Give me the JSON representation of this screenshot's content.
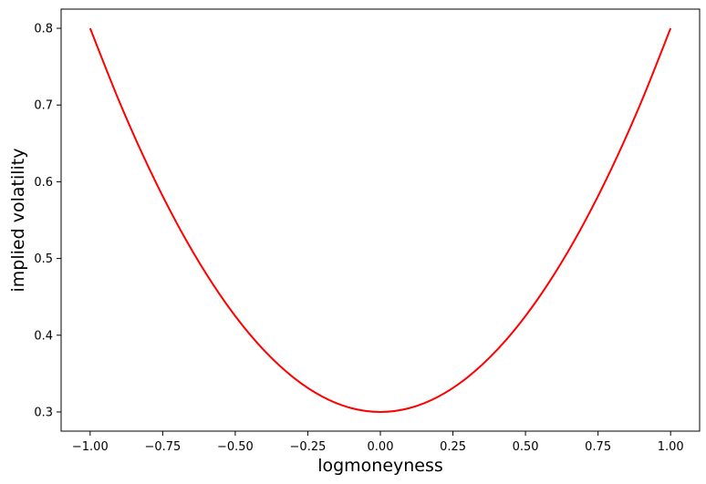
{
  "chart_data": {
    "type": "line",
    "title": "",
    "xlabel": "logmoneyness",
    "ylabel": "implied volatility",
    "xlim": [
      -1.1,
      1.1
    ],
    "ylim": [
      0.275,
      0.825
    ],
    "xticks": [
      -1.0,
      -0.75,
      -0.5,
      -0.25,
      0.0,
      0.25,
      0.5,
      0.75,
      1.0
    ],
    "xtick_labels": [
      "−1.00",
      "−0.75",
      "−0.50",
      "−0.25",
      "0.00",
      "0.25",
      "0.50",
      "0.75",
      "1.00"
    ],
    "yticks": [
      0.3,
      0.4,
      0.5,
      0.6,
      0.7,
      0.8
    ],
    "ytick_labels": [
      "0.3",
      "0.4",
      "0.5",
      "0.6",
      "0.7",
      "0.8"
    ],
    "grid": false,
    "legend": "none",
    "series": [
      {
        "color": "#ff0000",
        "x": [
          -1.0,
          -0.9,
          -0.8,
          -0.7,
          -0.6,
          -0.5,
          -0.4,
          -0.3,
          -0.2,
          -0.1,
          0.0,
          0.1,
          0.2,
          0.3,
          0.4,
          0.5,
          0.6,
          0.7,
          0.8,
          0.9,
          1.0
        ],
        "y": [
          0.8,
          0.705,
          0.62,
          0.545,
          0.48,
          0.425,
          0.38,
          0.345,
          0.32,
          0.305,
          0.3,
          0.305,
          0.32,
          0.345,
          0.38,
          0.425,
          0.48,
          0.545,
          0.62,
          0.705,
          0.8
        ]
      }
    ]
  }
}
